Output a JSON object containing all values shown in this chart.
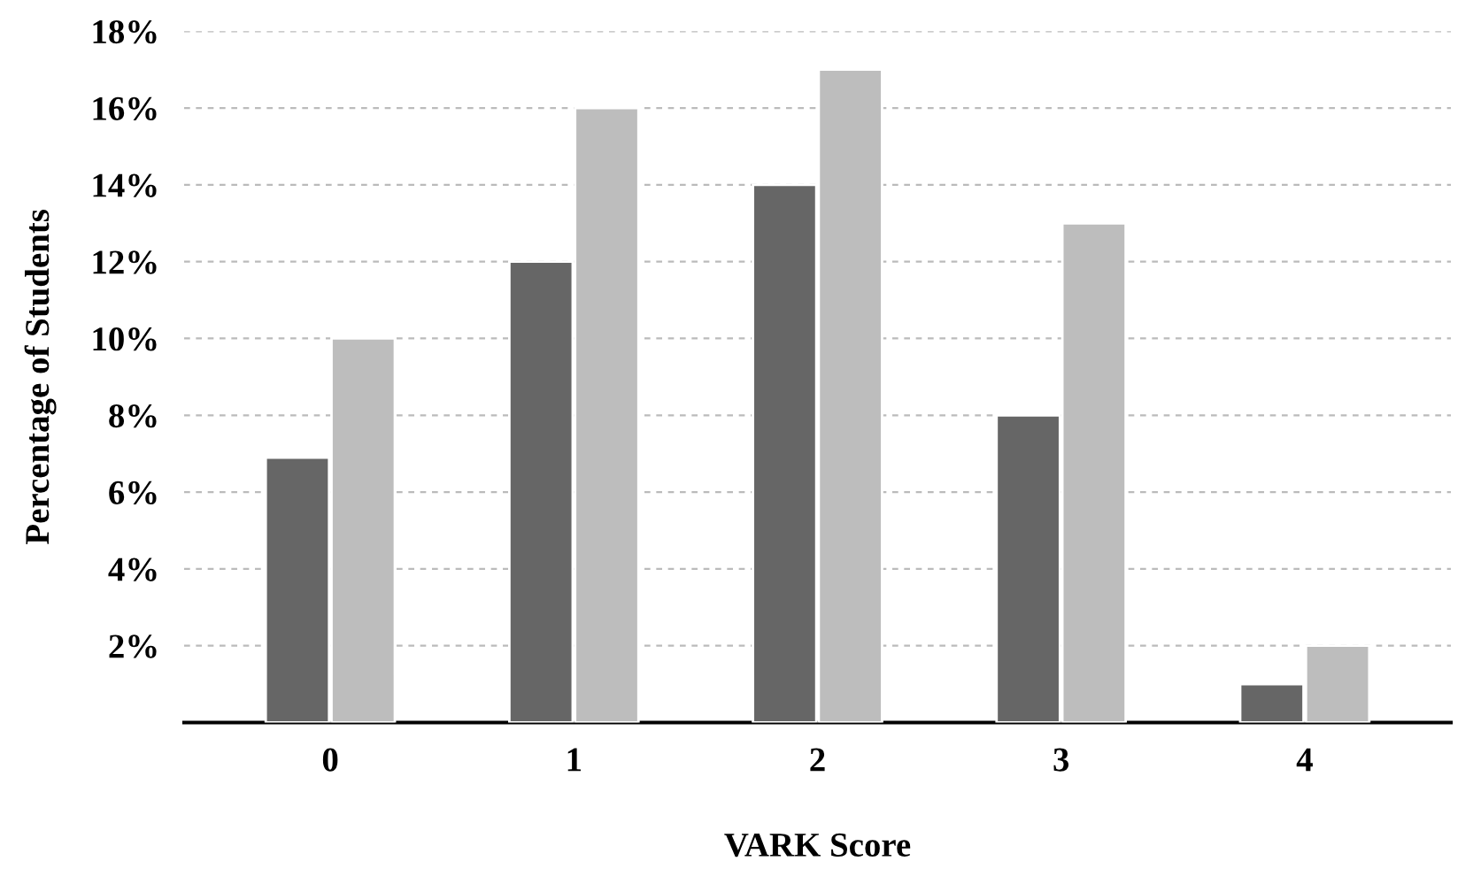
{
  "chart_data": {
    "type": "bar",
    "xlabel": "VARK Score",
    "ylabel": "Percentage of Students",
    "categories": [
      "0",
      "1",
      "2",
      "3",
      "4"
    ],
    "series": [
      {
        "color": "#666666",
        "values": [
          6.9,
          12,
          14,
          8,
          1
        ]
      },
      {
        "color": "#bdbdbd",
        "values": [
          10,
          16,
          17,
          13,
          2
        ]
      }
    ],
    "ylim": [
      0,
      18
    ],
    "yticks": [
      {
        "value": 2,
        "label": "2%"
      },
      {
        "value": 4,
        "label": "4%"
      },
      {
        "value": 6,
        "label": "6%"
      },
      {
        "value": 8,
        "label": "8%"
      },
      {
        "value": 10,
        "label": "10%"
      },
      {
        "value": 12,
        "label": "12%"
      },
      {
        "value": 14,
        "label": "14%"
      },
      {
        "value": 16,
        "label": "16%"
      },
      {
        "value": 18,
        "label": "18%"
      }
    ],
    "grid": "y"
  }
}
